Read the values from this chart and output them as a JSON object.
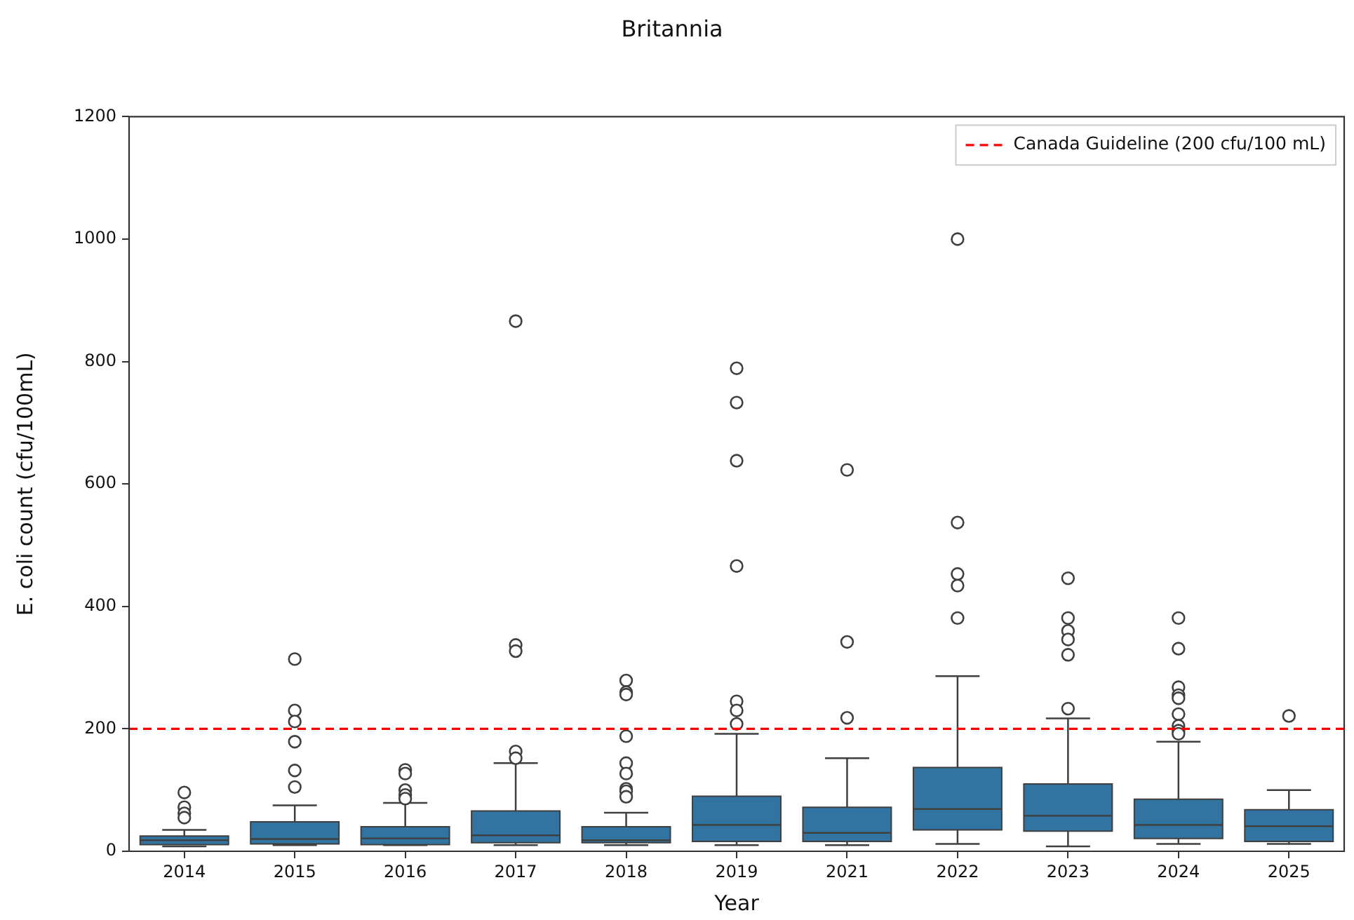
{
  "chart_data": {
    "type": "box",
    "title": "Britannia",
    "xlabel": "Year",
    "ylabel": "E. coli count (cfu/100mL)",
    "categories": [
      "2014",
      "2015",
      "2016",
      "2017",
      "2018",
      "2019",
      "2021",
      "2022",
      "2023",
      "2024",
      "2025"
    ],
    "color": "#3274a1",
    "boxes": [
      {
        "low": 8,
        "q1": 11,
        "median": 18,
        "q3": 25,
        "high": 35,
        "outliers": [
          96,
          72,
          62,
          55
        ]
      },
      {
        "low": 10,
        "q1": 12,
        "median": 20,
        "q3": 48,
        "high": 75,
        "outliers": [
          314,
          230,
          212,
          179,
          132,
          105
        ]
      },
      {
        "low": 10,
        "q1": 11,
        "median": 21,
        "q3": 40,
        "high": 79,
        "outliers": [
          133,
          127,
          100,
          92,
          86
        ]
      },
      {
        "low": 10,
        "q1": 14,
        "median": 26,
        "q3": 66,
        "high": 144,
        "outliers": [
          866,
          337,
          327,
          163,
          152
        ]
      },
      {
        "low": 10,
        "q1": 14,
        "median": 18,
        "q3": 40,
        "high": 63,
        "outliers": [
          279,
          260,
          256,
          188,
          144,
          127,
          102,
          98,
          89
        ]
      },
      {
        "low": 10,
        "q1": 16,
        "median": 43,
        "q3": 90,
        "high": 192,
        "outliers": [
          789,
          733,
          638,
          466,
          245,
          230,
          208
        ]
      },
      {
        "low": 10,
        "q1": 16,
        "median": 30,
        "q3": 72,
        "high": 152,
        "outliers": [
          623,
          342,
          218
        ]
      },
      {
        "low": 12,
        "q1": 35,
        "median": 69,
        "q3": 137,
        "high": 286,
        "outliers": [
          1000,
          537,
          453,
          434,
          381
        ]
      },
      {
        "low": 8,
        "q1": 33,
        "median": 58,
        "q3": 110,
        "high": 217,
        "outliers": [
          446,
          381,
          360,
          346,
          321,
          233
        ]
      },
      {
        "low": 12,
        "q1": 21,
        "median": 43,
        "q3": 85,
        "high": 179,
        "outliers": [
          381,
          331,
          268,
          255,
          250,
          224,
          205,
          197,
          192
        ]
      },
      {
        "low": 12,
        "q1": 16,
        "median": 41,
        "q3": 68,
        "high": 100,
        "outliers": [
          221
        ]
      }
    ],
    "ylim": [
      0,
      1200
    ],
    "yticks": [
      0,
      200,
      400,
      600,
      800,
      1000,
      1200
    ],
    "ref_lines": [
      {
        "axis": "y",
        "value": 200,
        "label": "Canada Guideline (200 cfu/100 mL)",
        "color": "#ff0000",
        "line_style": "dashed"
      }
    ],
    "legend": "top right"
  }
}
